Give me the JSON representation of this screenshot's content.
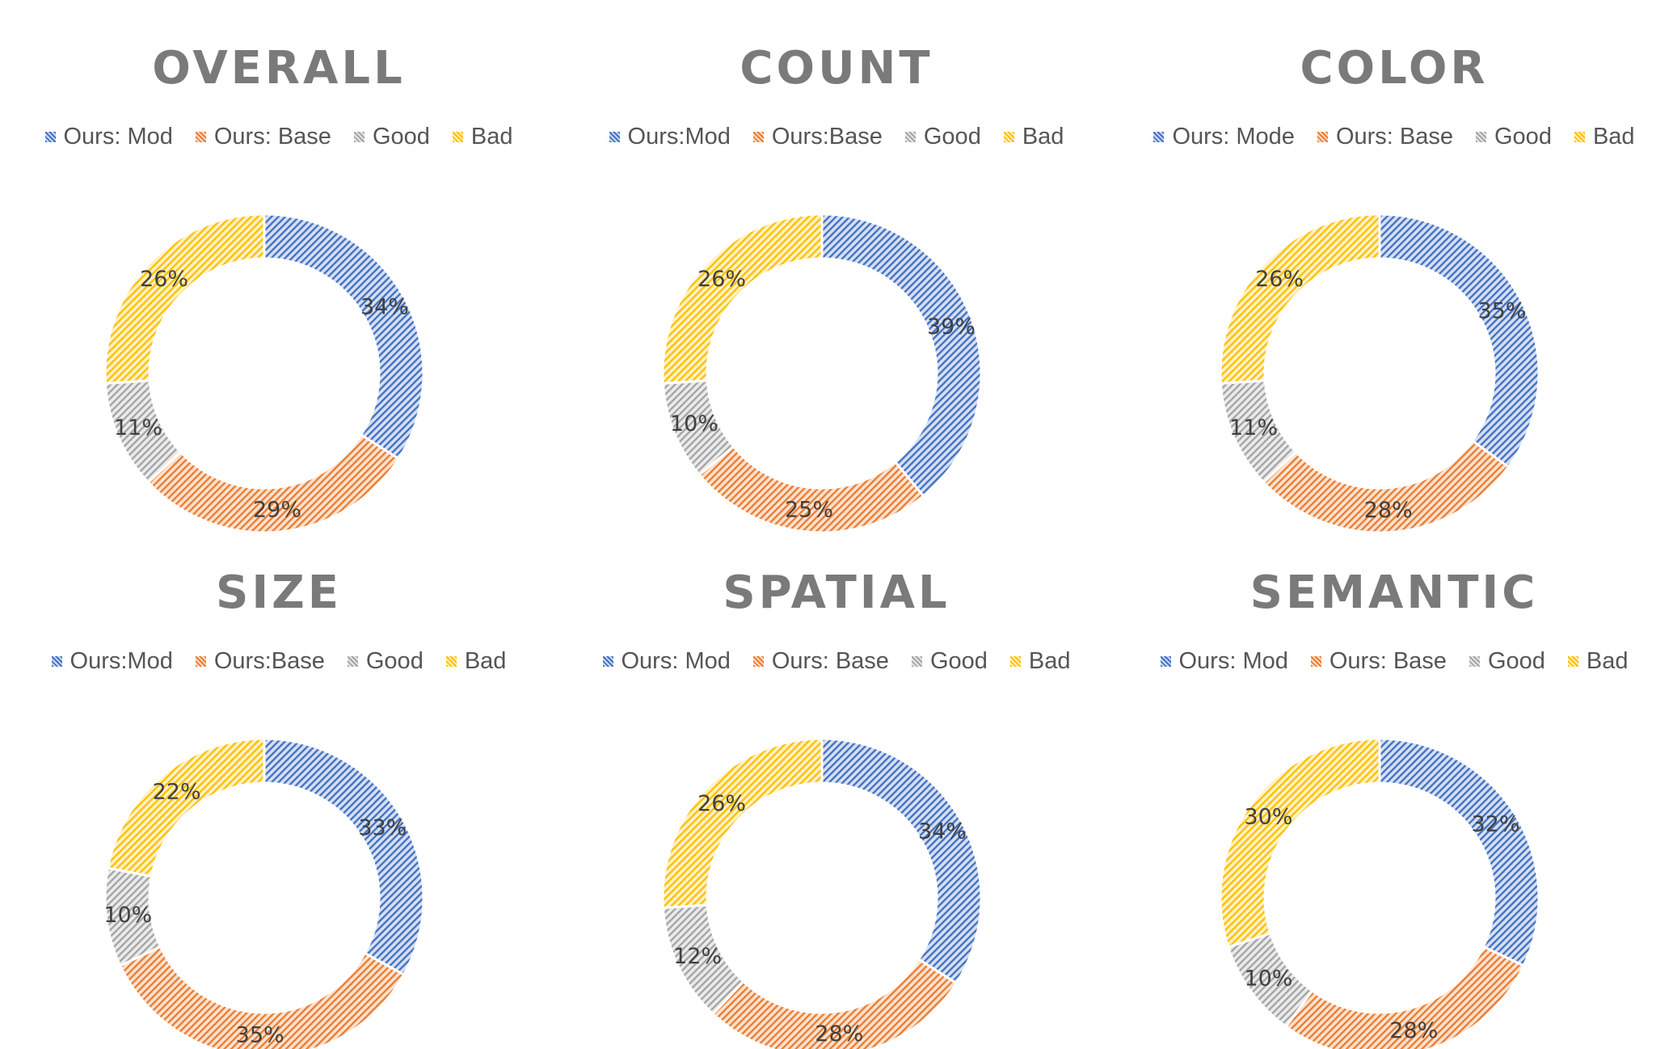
{
  "colors": {
    "ours_mod": "#4472c4",
    "ours_base": "#ed7d31",
    "good": "#a5a5a5",
    "bad": "#ffc000"
  },
  "chart_data": [
    {
      "type": "pie",
      "title": "OVERALL",
      "legend": [
        "Ours: Mod",
        "Ours: Base",
        "Good",
        "Bad"
      ],
      "values": [
        34,
        29,
        11,
        26
      ],
      "labels": [
        "34%",
        "29%",
        "11%",
        "26%"
      ]
    },
    {
      "type": "pie",
      "title": "COUNT",
      "legend": [
        "Ours:Mod",
        "Ours:Base",
        "Good",
        "Bad"
      ],
      "values": [
        39,
        25,
        10,
        26
      ],
      "labels": [
        "39%",
        "25%",
        "10%",
        "26%"
      ]
    },
    {
      "type": "pie",
      "title": "COLOR",
      "legend": [
        "Ours: Mode",
        "Ours: Base",
        "Good",
        "Bad"
      ],
      "values": [
        35,
        28,
        11,
        26
      ],
      "labels": [
        "35%",
        "28%",
        "11%",
        "26%"
      ]
    },
    {
      "type": "pie",
      "title": "SIZE",
      "legend": [
        "Ours:Mod",
        "Ours:Base",
        "Good",
        "Bad"
      ],
      "values": [
        33,
        35,
        10,
        22
      ],
      "labels": [
        "33%",
        "35%",
        "10%",
        "22%"
      ]
    },
    {
      "type": "pie",
      "title": "SPATIAL",
      "legend": [
        "Ours: Mod",
        "Ours: Base",
        "Good",
        "Bad"
      ],
      "values": [
        34,
        28,
        12,
        26
      ],
      "labels": [
        "34%",
        "28%",
        "12%",
        "26%"
      ]
    },
    {
      "type": "pie",
      "title": "SEMANTIC",
      "legend": [
        "Ours: Mod",
        "Ours: Base",
        "Good",
        "Bad"
      ],
      "values": [
        32,
        28,
        10,
        30
      ],
      "labels": [
        "32%",
        "28%",
        "10%",
        "30%"
      ]
    }
  ]
}
